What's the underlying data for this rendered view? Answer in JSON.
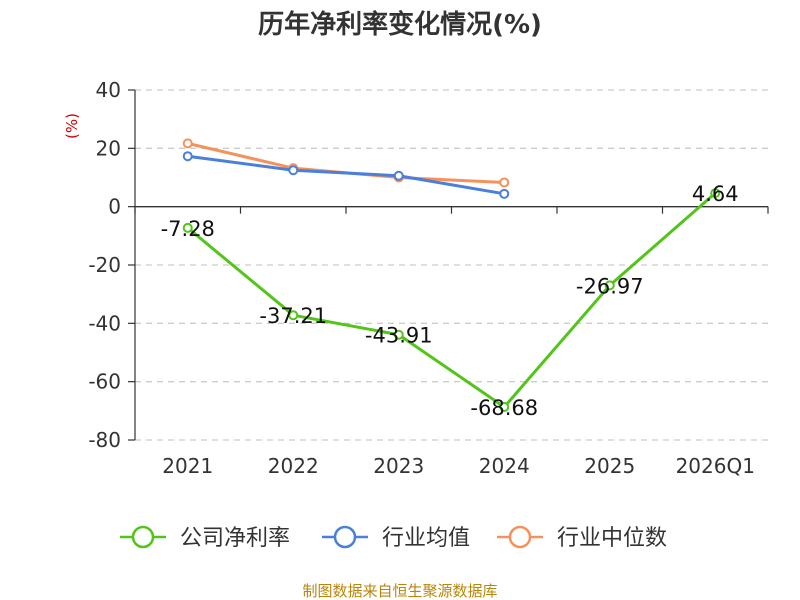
{
  "chart_data": {
    "type": "line",
    "title": "历年净利率变化情况(%)",
    "ylabel": "(%)",
    "categories": [
      "2021",
      "2022",
      "2023",
      "2024",
      "2025",
      "2026Q1"
    ],
    "ylim": [
      -80,
      40
    ],
    "yticks": [
      40,
      20,
      0,
      -20,
      -40,
      -60,
      -80
    ],
    "grid": true,
    "legend_position": "bottom",
    "series": [
      {
        "name": "公司净利率",
        "color": "#52c41a",
        "values": [
          -7.28,
          -37.21,
          -43.91,
          -68.68,
          -26.97,
          4.64
        ],
        "labels": [
          "-7.28",
          "-37.21",
          "-43.91",
          "-68.68",
          "-26.97",
          "4.64"
        ]
      },
      {
        "name": "行业均值",
        "color": "#4a7fdb",
        "values": [
          17.3,
          12.5,
          10.6,
          4.4,
          null,
          null
        ]
      },
      {
        "name": "行业中位数",
        "color": "#f5915a",
        "values": [
          21.7,
          13.2,
          10.0,
          8.3,
          null,
          null
        ]
      }
    ]
  },
  "source": "制图数据来自恒生聚源数据库"
}
